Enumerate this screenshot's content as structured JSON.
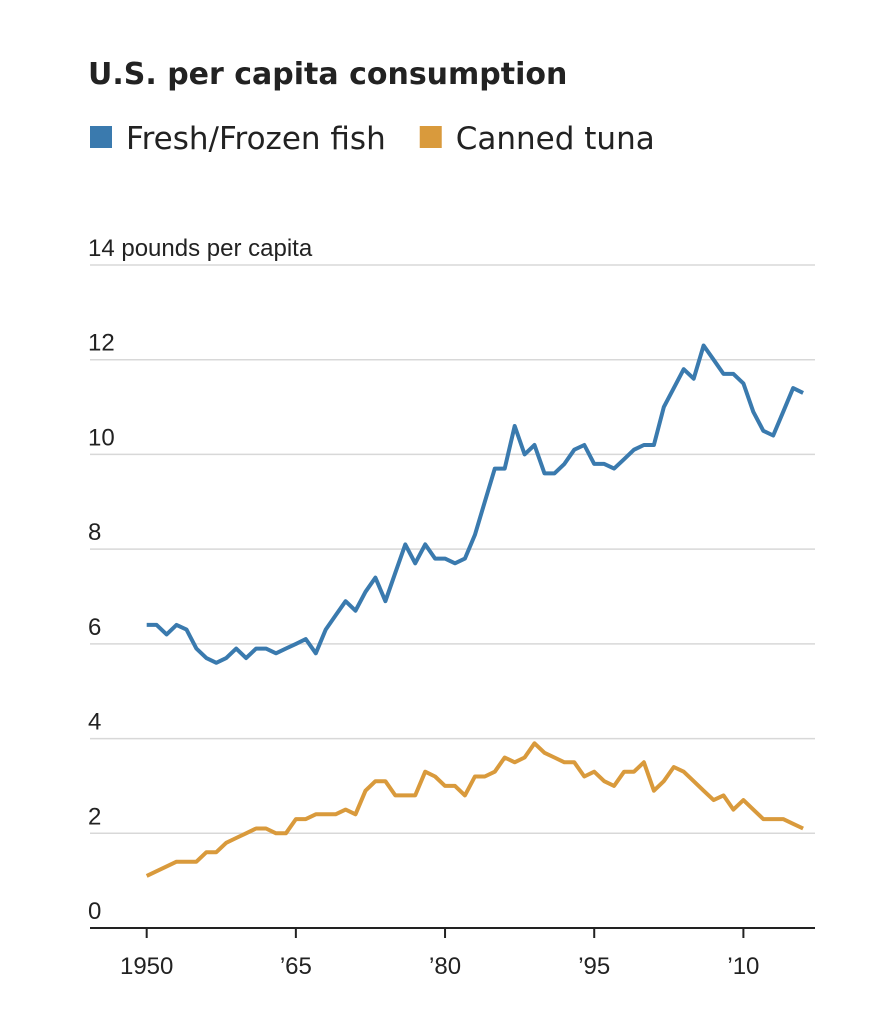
{
  "chart_data": {
    "type": "line",
    "title": "U.S. per capita consumption",
    "x": [
      1950,
      1951,
      1952,
      1953,
      1954,
      1955,
      1956,
      1957,
      1958,
      1959,
      1960,
      1961,
      1962,
      1963,
      1964,
      1965,
      1966,
      1967,
      1968,
      1969,
      1970,
      1971,
      1972,
      1973,
      1974,
      1975,
      1976,
      1977,
      1978,
      1979,
      1980,
      1981,
      1982,
      1983,
      1984,
      1985,
      1986,
      1987,
      1988,
      1989,
      1990,
      1991,
      1992,
      1993,
      1994,
      1995,
      1996,
      1997,
      1998,
      1999,
      2000,
      2001,
      2002,
      2003,
      2004,
      2005,
      2006,
      2007,
      2008,
      2009,
      2010,
      2011,
      2012,
      2013,
      2014,
      2015,
      2016
    ],
    "series": [
      {
        "name": "Fresh/Frozen fish",
        "color": "#3a7aae",
        "values": [
          6.4,
          6.4,
          6.2,
          6.4,
          6.3,
          5.9,
          5.7,
          5.6,
          5.7,
          5.9,
          5.7,
          5.9,
          5.9,
          5.8,
          5.9,
          6.0,
          6.1,
          5.8,
          6.3,
          6.6,
          6.9,
          6.7,
          7.1,
          7.4,
          6.9,
          7.5,
          8.1,
          7.7,
          8.1,
          7.8,
          7.8,
          7.7,
          7.8,
          8.3,
          9.0,
          9.7,
          9.7,
          10.6,
          10.0,
          10.2,
          9.6,
          9.6,
          9.8,
          10.1,
          10.2,
          9.8,
          9.8,
          9.7,
          9.9,
          10.1,
          10.2,
          10.2,
          11.0,
          11.4,
          11.8,
          11.6,
          12.3,
          12.0,
          11.7,
          11.7,
          11.5,
          10.9,
          10.5,
          10.4,
          10.9,
          11.4,
          11.3
        ]
      },
      {
        "name": "Canned tuna",
        "color": "#d99a3c",
        "values": [
          1.1,
          1.2,
          1.3,
          1.4,
          1.4,
          1.4,
          1.6,
          1.6,
          1.8,
          1.9,
          2.0,
          2.1,
          2.1,
          2.0,
          2.0,
          2.3,
          2.3,
          2.4,
          2.4,
          2.4,
          2.5,
          2.4,
          2.9,
          3.1,
          3.1,
          2.8,
          2.8,
          2.8,
          3.3,
          3.2,
          3.0,
          3.0,
          2.8,
          3.2,
          3.2,
          3.3,
          3.6,
          3.5,
          3.6,
          3.9,
          3.7,
          3.6,
          3.5,
          3.5,
          3.2,
          3.3,
          3.1,
          3.0,
          3.3,
          3.3,
          3.5,
          2.9,
          3.1,
          3.4,
          3.3,
          3.1,
          2.9,
          2.7,
          2.8,
          2.5,
          2.7,
          2.5,
          2.3,
          2.3,
          2.3,
          2.2,
          2.1
        ]
      }
    ],
    "xlim": [
      1944.3,
      2017.2
    ],
    "xticks": [
      {
        "value": 1950,
        "label": "1950"
      },
      {
        "value": 1965,
        "label": "’65"
      },
      {
        "value": 1980,
        "label": "’80"
      },
      {
        "value": 1995,
        "label": "’95"
      },
      {
        "value": 2010,
        "label": "’10"
      }
    ],
    "ylim": [
      0,
      14
    ],
    "yticks": [
      0,
      2,
      4,
      6,
      8,
      10,
      12,
      {
        "value": 14,
        "label": "14 pounds per capita"
      }
    ],
    "grid": true
  }
}
